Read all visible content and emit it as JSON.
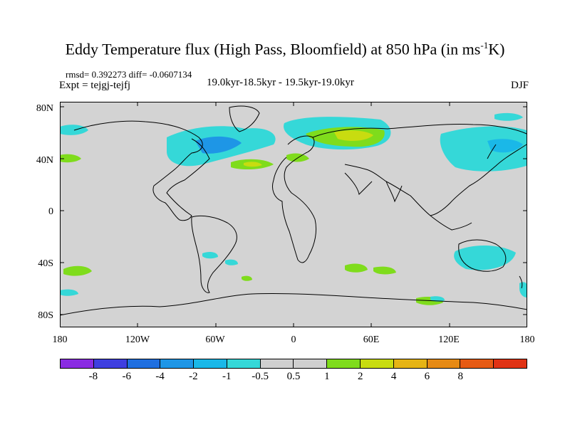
{
  "title": {
    "main": "Eddy Temperature flux (High Pass, Bloomfield) at 850 hPa (in ms",
    "sup": "-1",
    "end": "K)"
  },
  "stats": "rmsd= 0.392273 diff= -0.0607134",
  "expt": "Expt = tejgj-tejfj",
  "period": "19.0kyr-18.5kyr - 19.5kyr-19.0kyr",
  "season": "DJF",
  "lat_labels": [
    "80N",
    "40N",
    "0",
    "40S",
    "80S"
  ],
  "lon_labels": [
    "180",
    "120W",
    "60W",
    "0",
    "60E",
    "120E",
    "180"
  ],
  "colorbar": {
    "colors": [
      "#8a2be2",
      "#3f3fe0",
      "#1f6fe0",
      "#1e96e6",
      "#1ab8e8",
      "#35d8d8",
      "#cfcfcf",
      "#cfcfcf",
      "#7fdc1c",
      "#c8dc10",
      "#e6b414",
      "#e68a14",
      "#e65a14",
      "#e03214"
    ],
    "labels": [
      "-8",
      "-6",
      "-4",
      "-2",
      "-1",
      "-0.5",
      "0.5",
      "1",
      "2",
      "4",
      "6",
      "8"
    ]
  },
  "colors": {
    "land_ocean_bg": "#d3d3d3",
    "frame": "#000000"
  }
}
